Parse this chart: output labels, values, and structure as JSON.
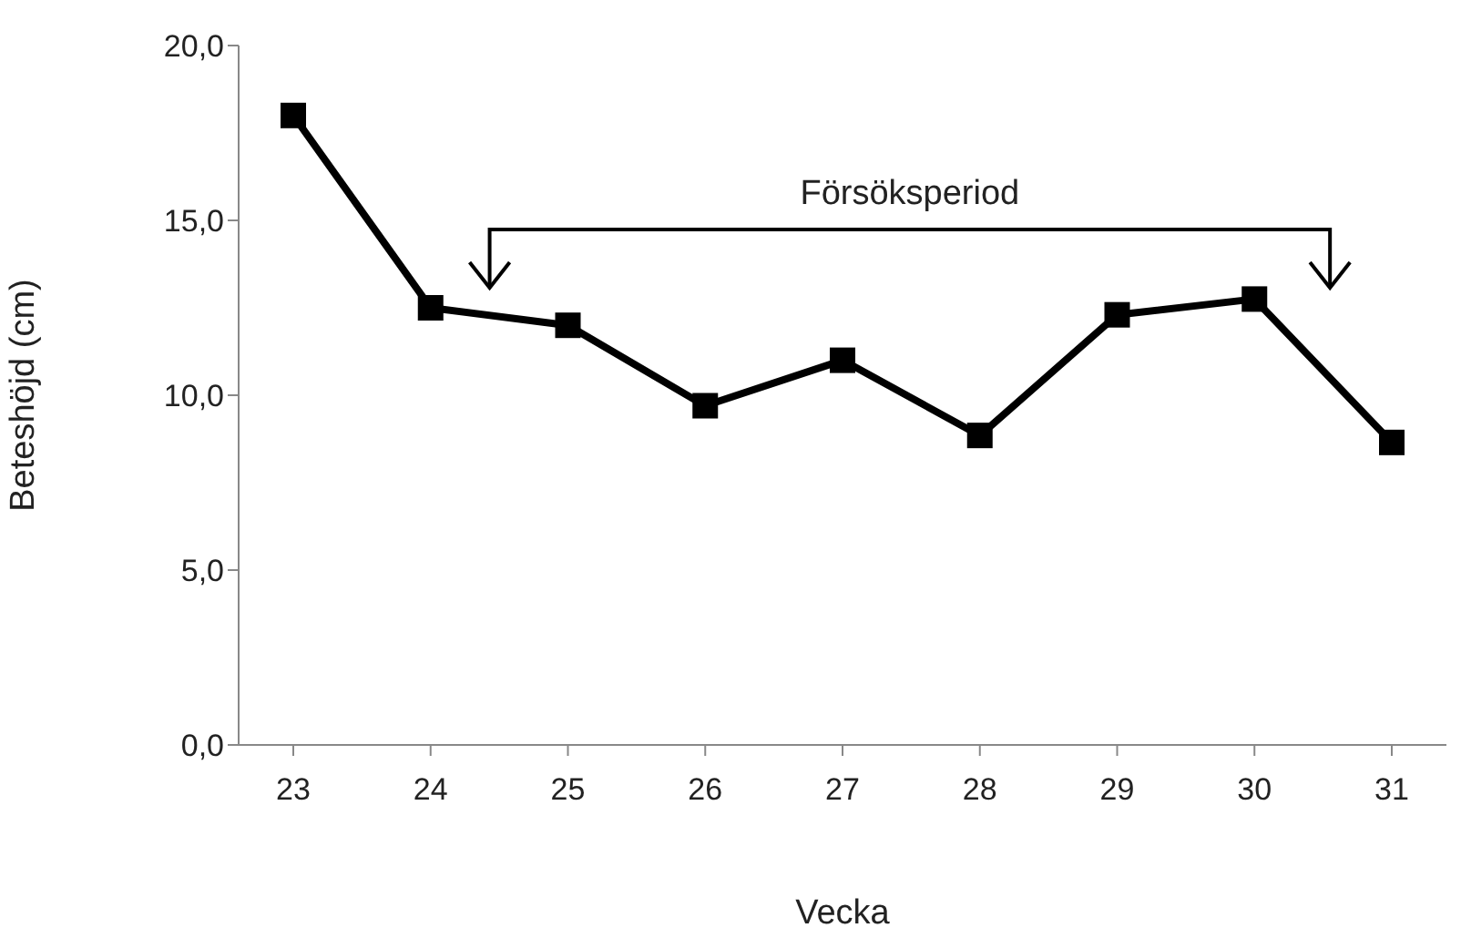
{
  "chart_data": {
    "type": "line",
    "xlabel": "Vecka",
    "ylabel": "Beteshöjd (cm)",
    "categories": [
      "23",
      "24",
      "25",
      "26",
      "27",
      "28",
      "29",
      "30",
      "31"
    ],
    "series": [
      {
        "color": "#000000",
        "values": [
          18.0,
          12.5,
          12.0,
          9.7,
          11.0,
          8.85,
          12.3,
          12.75,
          8.65
        ]
      }
    ],
    "ylim": [
      0,
      20
    ],
    "yticks": [
      {
        "value": 0,
        "label": "0,0"
      },
      {
        "value": 5,
        "label": "5,0"
      },
      {
        "value": 10,
        "label": "10,0"
      },
      {
        "value": 15,
        "label": "15,0"
      },
      {
        "value": 20,
        "label": "20,0"
      }
    ],
    "annotations": [
      "Försöksperiod"
    ],
    "grid": false,
    "legend": false,
    "marker": "square",
    "line_style": "solid"
  }
}
